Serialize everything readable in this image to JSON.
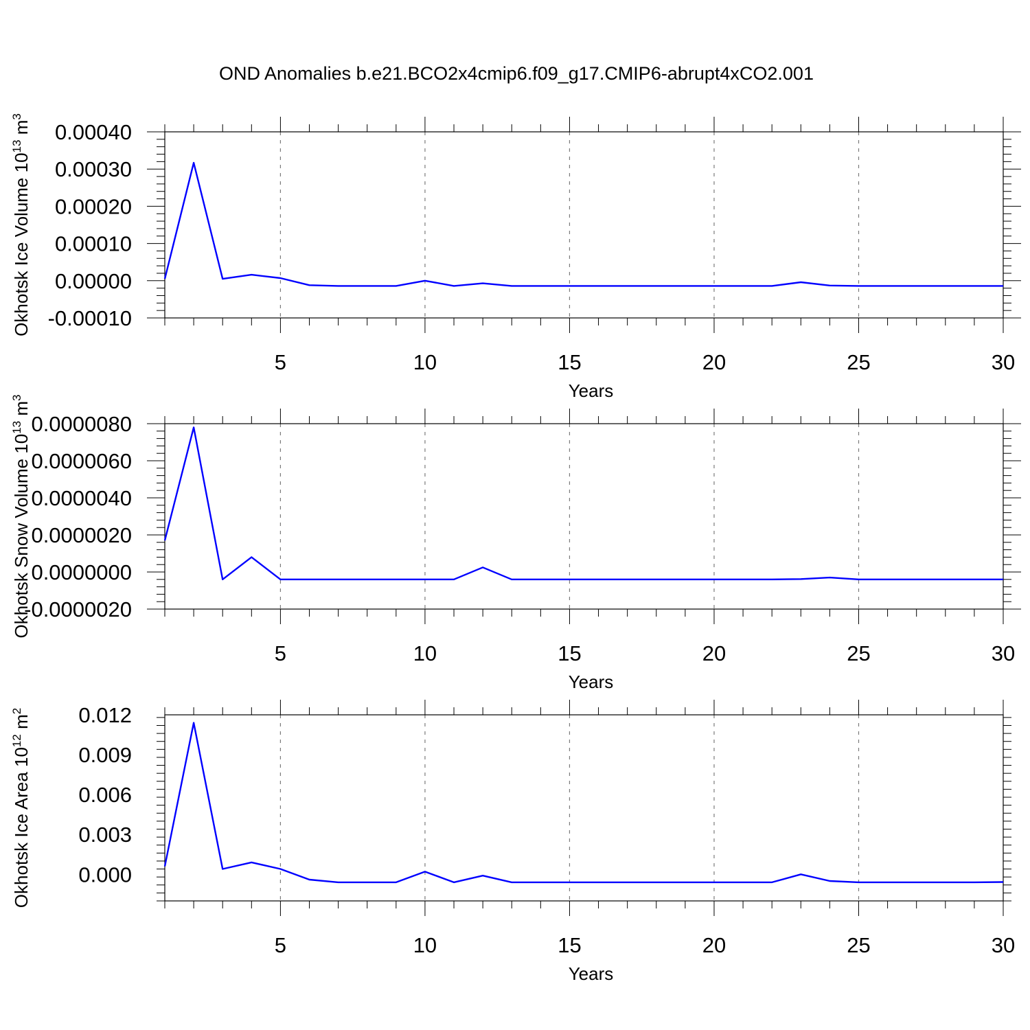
{
  "title": "OND Anomalies b.e21.BCO2x4cmip6.f09_g17.CMIP6-abrupt4xCO2.001",
  "line_color": "#0000ff",
  "chart_data": [
    {
      "type": "line",
      "ylabel": "Okhotsk Ice Volume 10",
      "ylabel_exp": "13",
      "ylabel_unit": " m",
      "ylabel_unit_exp": "3",
      "xlabel": "Years",
      "xlim": [
        1,
        30
      ],
      "ylim": [
        -0.0001,
        0.0004
      ],
      "xticks": [
        5,
        10,
        15,
        20,
        25,
        30
      ],
      "yticks": [
        {
          "v": 0.0004,
          "label": "0.00040"
        },
        {
          "v": 0.0003,
          "label": "0.00030"
        },
        {
          "v": 0.0002,
          "label": "0.00020"
        },
        {
          "v": 0.0001,
          "label": "0.00010"
        },
        {
          "v": 0.0,
          "label": "0.00000"
        },
        {
          "v": -0.0001,
          "label": "-0.00010"
        }
      ],
      "grid_x": true,
      "series": [
        {
          "x": [
            1,
            2,
            3,
            4,
            5,
            6,
            7,
            8,
            9,
            10,
            11,
            12,
            13,
            14,
            15,
            16,
            17,
            18,
            19,
            20,
            21,
            22,
            23,
            24,
            25,
            26,
            27,
            28,
            29,
            30
          ],
          "values": [
            5e-06,
            0.000317,
            5e-06,
            1.6e-05,
            7e-06,
            -1.2e-05,
            -1.4e-05,
            -1.4e-05,
            -1.4e-05,
            0.0,
            -1.4e-05,
            -7e-06,
            -1.4e-05,
            -1.4e-05,
            -1.4e-05,
            -1.4e-05,
            -1.4e-05,
            -1.4e-05,
            -1.4e-05,
            -1.4e-05,
            -1.4e-05,
            -1.4e-05,
            -4e-06,
            -1.3e-05,
            -1.4e-05,
            -1.4e-05,
            -1.4e-05,
            -1.4e-05,
            -1.4e-05,
            -1.4e-05
          ]
        }
      ]
    },
    {
      "type": "line",
      "ylabel": "Okhotsk Snow Volume 10",
      "ylabel_exp": "13",
      "ylabel_unit": " m",
      "ylabel_unit_exp": "3",
      "xlabel": "Years",
      "xlim": [
        1,
        30
      ],
      "ylim": [
        -2e-06,
        8e-06
      ],
      "xticks": [
        5,
        10,
        15,
        20,
        25,
        30
      ],
      "yticks": [
        {
          "v": 8e-06,
          "label": "0.0000080"
        },
        {
          "v": 6e-06,
          "label": "0.0000060"
        },
        {
          "v": 4e-06,
          "label": "0.0000040"
        },
        {
          "v": 2e-06,
          "label": "0.0000020"
        },
        {
          "v": 0.0,
          "label": "0.0000000"
        },
        {
          "v": -2e-06,
          "label": "-0.0000020"
        }
      ],
      "grid_x": true,
      "series": [
        {
          "x": [
            1,
            2,
            3,
            4,
            5,
            6,
            7,
            8,
            9,
            10,
            11,
            12,
            13,
            14,
            15,
            16,
            17,
            18,
            19,
            20,
            21,
            22,
            23,
            24,
            25,
            26,
            27,
            28,
            29,
            30
          ],
          "values": [
            1.7e-06,
            7.8e-06,
            -4e-07,
            8e-07,
            -4e-07,
            -4e-07,
            -4e-07,
            -4e-07,
            -4e-07,
            -4e-07,
            -4e-07,
            2.5e-07,
            -4e-07,
            -4e-07,
            -4e-07,
            -4e-07,
            -4e-07,
            -4e-07,
            -4e-07,
            -4e-07,
            -4e-07,
            -4e-07,
            -3.8e-07,
            -3e-07,
            -4e-07,
            -4e-07,
            -4e-07,
            -4e-07,
            -4e-07,
            -4e-07
          ]
        }
      ]
    },
    {
      "type": "line",
      "ylabel": "Okhotsk Ice Area 10",
      "ylabel_exp": "12",
      "ylabel_unit": " m",
      "ylabel_unit_exp": "2",
      "xlabel": "Years",
      "xlim": [
        1,
        30
      ],
      "ylim": [
        -0.002,
        0.012
      ],
      "xticks": [
        5,
        10,
        15,
        20,
        25,
        30
      ],
      "yticks": [
        {
          "v": 0.012,
          "label": "0.012"
        },
        {
          "v": 0.009,
          "label": "0.009"
        },
        {
          "v": 0.006,
          "label": "0.006"
        },
        {
          "v": 0.003,
          "label": "0.003"
        },
        {
          "v": 0.0,
          "label": "0.000"
        }
      ],
      "grid_x": true,
      "series": [
        {
          "x": [
            1,
            2,
            3,
            4,
            5,
            6,
            7,
            8,
            9,
            10,
            11,
            12,
            13,
            14,
            15,
            16,
            17,
            18,
            19,
            20,
            21,
            22,
            23,
            24,
            25,
            26,
            27,
            28,
            29,
            30
          ],
          "values": [
            0.0006,
            0.0114,
            0.0004,
            0.0009,
            0.0004,
            -0.0004,
            -0.0006,
            -0.0006,
            -0.0006,
            0.0002,
            -0.0006,
            -0.0001,
            -0.0006,
            -0.0006,
            -0.0006,
            -0.0006,
            -0.0006,
            -0.0006,
            -0.0006,
            -0.0006,
            -0.0006,
            -0.0006,
            0.0,
            -0.0005,
            -0.0006,
            -0.0006,
            -0.0006,
            -0.0006,
            -0.0006,
            -0.00058
          ]
        }
      ]
    }
  ]
}
